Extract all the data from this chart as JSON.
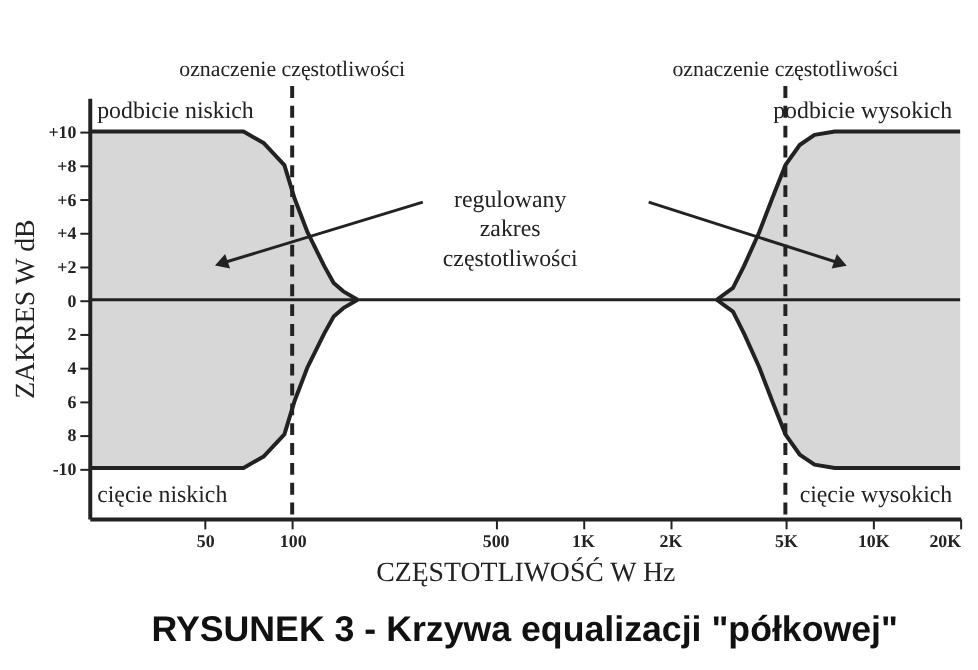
{
  "chart_data": {
    "type": "area",
    "title": "RYSUNEK 3 - Krzywa equalizacji \"półkowej\"",
    "xlabel": "CZĘSTOTLIWOŚĆ W Hz",
    "ylabel": "ZAKRES W dB",
    "log": "x",
    "grid": false,
    "xlim": [
      20,
      20000
    ],
    "ylim": [
      -13,
      12
    ],
    "xticks": [
      50,
      100,
      500,
      {
        "value": 1000,
        "label": "1K"
      },
      {
        "value": 2000,
        "label": "2K"
      },
      {
        "value": 5000,
        "label": "5K"
      },
      {
        "value": 10000,
        "label": "10K"
      },
      {
        "value": 20000,
        "label": "20K"
      }
    ],
    "yticks": [
      {
        "value": 10,
        "label": "+10"
      },
      {
        "value": 8,
        "label": "+8"
      },
      {
        "value": 6,
        "label": "+6"
      },
      {
        "value": 4,
        "label": "+4"
      },
      {
        "value": 2,
        "label": "+2"
      },
      0,
      {
        "value": -2,
        "label": "2"
      },
      {
        "value": -4,
        "label": "4"
      },
      {
        "value": -6,
        "label": "6"
      },
      {
        "value": -8,
        "label": "8"
      },
      {
        "value": -10,
        "label": "-10"
      }
    ],
    "series": [
      {
        "name": "podbicie niskich",
        "color": "#222222",
        "x": [
          20,
          40,
          68,
          80,
          94,
          102,
          113,
          129,
          139,
          150,
          168
        ],
        "values": [
          10,
          10,
          10,
          9.3,
          8,
          6,
          4,
          2,
          1,
          0.5,
          0
        ]
      },
      {
        "name": "cięcie niskich",
        "color": "#222222",
        "x": [
          20,
          40,
          68,
          80,
          94,
          102,
          113,
          129,
          139,
          150,
          168
        ],
        "values": [
          -10,
          -10,
          -10,
          -9.3,
          -8,
          -6,
          -4,
          -2,
          -1,
          -0.5,
          0
        ]
      },
      {
        "name": "podbicie wysokich",
        "color": "#222222",
        "x": [
          2900,
          3300,
          3600,
          4060,
          4500,
          5000,
          5600,
          6300,
          7400,
          10000,
          20000
        ],
        "values": [
          0,
          0.7,
          2,
          4,
          6,
          8,
          9.2,
          9.8,
          10,
          10,
          10
        ]
      },
      {
        "name": "cięcie wysokich",
        "color": "#222222",
        "x": [
          2900,
          3300,
          3600,
          4060,
          4500,
          5000,
          5600,
          6300,
          7400,
          10000,
          20000
        ],
        "values": [
          0,
          -0.7,
          -2,
          -4,
          -6,
          -8,
          -9.2,
          -9.8,
          -10,
          -10,
          -10
        ]
      }
    ],
    "ref_lines": [
      {
        "axis": "x",
        "value": 100,
        "label": "oznaczenie częstotliwości",
        "line_style": "dashed",
        "color": "#222222"
      },
      {
        "axis": "x",
        "value": 5000,
        "label": "oznaczenie częstotliwości",
        "line_style": "dashed",
        "color": "#222222"
      }
    ],
    "annotations": [
      "regulowany zakres częstotliwości"
    ]
  }
}
